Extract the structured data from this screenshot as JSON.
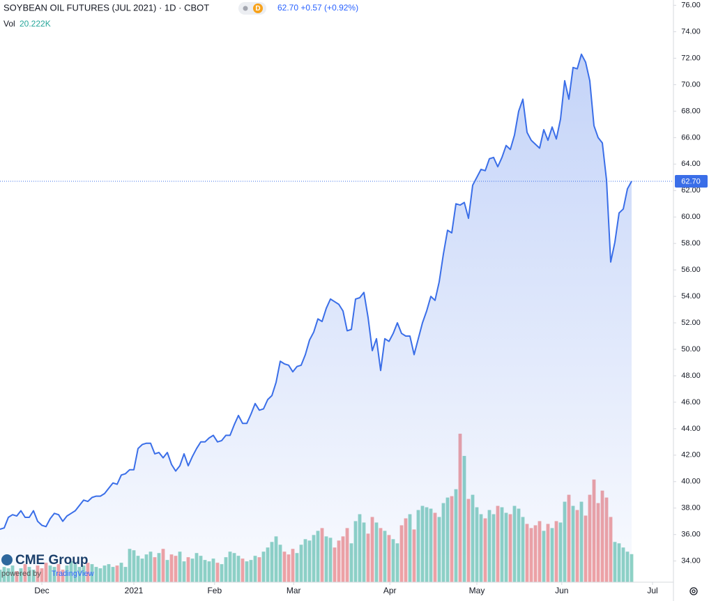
{
  "chart_data": {
    "type": "line",
    "title": "SOYBEAN OIL FUTURES (JUL 2021) · 1D · CBOT",
    "interval_badge": "D",
    "quote": "62.70 +0.57 (+0.92%)",
    "color": "#3a6ee8",
    "values": [
      36.4,
      36.5,
      37.3,
      37.5,
      37.4,
      37.8,
      37.3,
      37.3,
      37.8,
      37.0,
      36.7,
      36.6,
      37.2,
      37.6,
      37.5,
      37.0,
      37.4,
      37.6,
      37.8,
      38.2,
      38.6,
      38.5,
      38.8,
      38.9,
      38.9,
      39.1,
      39.5,
      39.9,
      39.8,
      40.5,
      40.6,
      40.9,
      40.9,
      42.5,
      42.8,
      42.9,
      42.9,
      42.1,
      42.2,
      41.8,
      42.2,
      41.3,
      40.8,
      41.2,
      42.1,
      41.2,
      41.9,
      42.5,
      43.0,
      43.0,
      43.3,
      43.5,
      43.0,
      43.1,
      43.5,
      43.5,
      44.3,
      45.0,
      44.4,
      44.4,
      45.1,
      45.9,
      45.4,
      45.5,
      46.2,
      46.5,
      47.5,
      49.1,
      48.9,
      48.8,
      48.3,
      48.7,
      48.8,
      49.6,
      50.7,
      51.3,
      52.3,
      52.1,
      53.1,
      53.8,
      53.6,
      53.4,
      52.9,
      51.4,
      51.5,
      53.8,
      53.9,
      54.3,
      52.4,
      49.9,
      50.8,
      48.4,
      50.8,
      50.6,
      51.2,
      52.0,
      51.2,
      51.0,
      51.0,
      49.6,
      50.8,
      52.0,
      52.9,
      54.0,
      53.7,
      55.1,
      57.2,
      59.0,
      58.8,
      61.0,
      60.9,
      61.1,
      59.9,
      62.4,
      63.0,
      63.6,
      63.5,
      64.4,
      64.5,
      63.8,
      64.5,
      65.4,
      65.1,
      66.2,
      68.0,
      68.9,
      66.4,
      65.8,
      65.5,
      65.2,
      66.6,
      65.8,
      66.8,
      65.9,
      67.4,
      70.3,
      68.9,
      71.3,
      71.2,
      72.3,
      71.7,
      70.3,
      66.9,
      66.0,
      65.6,
      62.8,
      56.6,
      58.1,
      60.3,
      60.6,
      62.13,
      62.7
    ],
    "last_price": {
      "value": 62.7,
      "label": "62.70"
    },
    "volume": {
      "label": "Vol",
      "last_label": "20.222K",
      "up_color": "#8fd3c5",
      "down_color": "#f2a3a3",
      "values": [
        9,
        11,
        10,
        12,
        8,
        10,
        13,
        11,
        9,
        12,
        10,
        14,
        12,
        11,
        13,
        9,
        12,
        15,
        13,
        11,
        12,
        14,
        13,
        11,
        10,
        12,
        13,
        11,
        12,
        14,
        11,
        24,
        23,
        19,
        17,
        20,
        22,
        18,
        21,
        24,
        16,
        20,
        19,
        22,
        15,
        18,
        17,
        21,
        19,
        16,
        15,
        17,
        14,
        13,
        18,
        22,
        21,
        19,
        17,
        15,
        16,
        19,
        18,
        22,
        25,
        29,
        33,
        27,
        22,
        20,
        24,
        21,
        27,
        31,
        30,
        34,
        37,
        39,
        33,
        32,
        25,
        30,
        33,
        39,
        28,
        44,
        49,
        43,
        35,
        47,
        43,
        39,
        37,
        34,
        31,
        28,
        41,
        46,
        49,
        38,
        52,
        55,
        54,
        53,
        50,
        47,
        57,
        61,
        62,
        67,
        107,
        91,
        60,
        63,
        54,
        49,
        46,
        52,
        49,
        55,
        54,
        50,
        49,
        55,
        53,
        47,
        42,
        39,
        41,
        44,
        37,
        42,
        39,
        44,
        43,
        58,
        63,
        55,
        52,
        58,
        48,
        63,
        74,
        57,
        66,
        61,
        47,
        29,
        28,
        25,
        22,
        20.222
      ]
    },
    "xlim": [
      0,
      160
    ],
    "xticks": [
      {
        "value": 10,
        "label": "Dec"
      },
      {
        "value": 32,
        "label": "2021"
      },
      {
        "value": 51.3,
        "label": "Feb"
      },
      {
        "value": 70.2,
        "label": "Mar"
      },
      {
        "value": 93.2,
        "label": "Apr"
      },
      {
        "value": 114,
        "label": "May"
      },
      {
        "value": 134.3,
        "label": "Jun"
      },
      {
        "value": 156,
        "label": "Jul"
      }
    ],
    "ylim": [
      32.4,
      76.4
    ],
    "yticks": [
      {
        "value": 34,
        "label": "34.00"
      },
      {
        "value": 36,
        "label": "36.00"
      },
      {
        "value": 38,
        "label": "38.00"
      },
      {
        "value": 40,
        "label": "40.00"
      },
      {
        "value": 42,
        "label": "42.00"
      },
      {
        "value": 44,
        "label": "44.00"
      },
      {
        "value": 46,
        "label": "46.00"
      },
      {
        "value": 48,
        "label": "48.00"
      },
      {
        "value": 50,
        "label": "50.00"
      },
      {
        "value": 52,
        "label": "52.00"
      },
      {
        "value": 54,
        "label": "54.00"
      },
      {
        "value": 56,
        "label": "56.00"
      },
      {
        "value": 58,
        "label": "58.00"
      },
      {
        "value": 60,
        "label": "60.00"
      },
      {
        "value": 62,
        "label": "62.00"
      },
      {
        "value": 64,
        "label": "64.00"
      },
      {
        "value": 66,
        "label": "66.00"
      },
      {
        "value": 68,
        "label": "68.00"
      },
      {
        "value": 70,
        "label": "70.00"
      },
      {
        "value": 72,
        "label": "72.00"
      },
      {
        "value": 74,
        "label": "74.00"
      },
      {
        "value": 76,
        "label": "76.00"
      }
    ],
    "logo": "CME Group",
    "powered_by": "powered by",
    "powered_brand": "TradingView"
  }
}
